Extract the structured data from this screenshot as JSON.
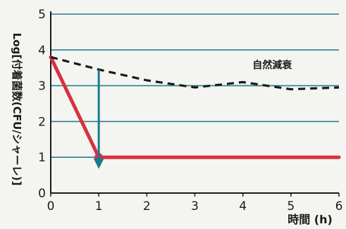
{
  "chart_data": {
    "type": "line",
    "title": "",
    "xlabel": "時間 (h)",
    "ylabel": "Log[付着菌数(CFU/シャーレ)]",
    "xlim": [
      0,
      6
    ],
    "ylim": [
      0,
      5
    ],
    "x_ticks": [
      "0",
      "1",
      "2",
      "3",
      "4",
      "5",
      "6"
    ],
    "y_ticks": [
      "0",
      "1",
      "2",
      "3",
      "4",
      "5"
    ],
    "grid": "horizontal",
    "series": [
      {
        "name": "",
        "style": "solid",
        "color": "#d6323f",
        "x": [
          0,
          1,
          6
        ],
        "y": [
          3.8,
          1.0,
          1.0
        ]
      },
      {
        "name": "自然減衰",
        "style": "dashed",
        "color": "#1a1a1a",
        "x": [
          0,
          1,
          2,
          3,
          4,
          5,
          6
        ],
        "y": [
          3.8,
          3.45,
          3.15,
          2.95,
          3.1,
          2.9,
          2.95
        ]
      }
    ],
    "annotations": [
      {
        "type": "arrow",
        "x": 1,
        "from": 3.45,
        "to": 1.0,
        "color": "#1a7a90"
      }
    ]
  },
  "colors": {
    "axis": "#1a1a1a",
    "grid": "#2a7d8f",
    "background": "#f4f5f0"
  }
}
